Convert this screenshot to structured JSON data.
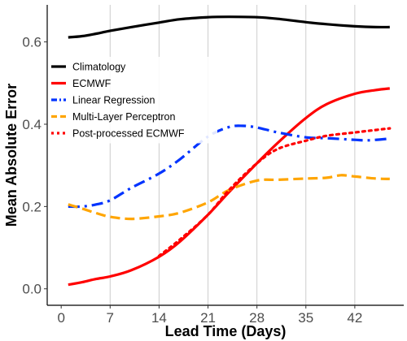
{
  "chart_data": {
    "type": "line",
    "xlabel": "Lead Time (Days)",
    "ylabel": "Mean Absolute Error",
    "x_ticks": [
      "0",
      "7",
      "14",
      "21",
      "28",
      "35",
      "42"
    ],
    "y_ticks": [
      "0.0",
      "0.2",
      "0.4",
      "0.6"
    ],
    "xlim": [
      -2,
      49
    ],
    "ylim": [
      -0.04,
      0.69
    ],
    "vertical_gridlines_at": [
      7,
      14,
      21,
      28,
      35,
      42
    ],
    "legend_position": "top-left",
    "series": [
      {
        "name": "Climatology",
        "color": "#000000",
        "dash": "solid",
        "x": [
          1,
          3,
          5,
          7,
          10,
          14,
          17,
          21,
          24,
          28,
          31,
          35,
          38,
          42,
          45,
          47
        ],
        "y": [
          0.611,
          0.614,
          0.62,
          0.627,
          0.636,
          0.647,
          0.655,
          0.66,
          0.661,
          0.66,
          0.656,
          0.648,
          0.643,
          0.638,
          0.636,
          0.636
        ]
      },
      {
        "name": "ECMWF",
        "color": "#ff0000",
        "dash": "solid",
        "x": [
          1,
          3,
          5,
          7,
          10,
          14,
          17,
          21,
          24,
          28,
          31,
          35,
          38,
          42,
          45,
          47
        ],
        "y": [
          0.01,
          0.016,
          0.024,
          0.03,
          0.045,
          0.078,
          0.115,
          0.18,
          0.235,
          0.305,
          0.355,
          0.415,
          0.449,
          0.474,
          0.483,
          0.487
        ]
      },
      {
        "name": "Linear Regression",
        "color": "#0033ff",
        "dash": "dashdot",
        "x": [
          1,
          3,
          5,
          7,
          10,
          14,
          17,
          21,
          24,
          26,
          28,
          31,
          35,
          38,
          42,
          44,
          47
        ],
        "y": [
          0.2,
          0.2,
          0.205,
          0.215,
          0.245,
          0.28,
          0.315,
          0.37,
          0.393,
          0.396,
          0.392,
          0.38,
          0.368,
          0.366,
          0.362,
          0.361,
          0.365
        ]
      },
      {
        "name": "Multi-Layer Perceptron",
        "color": "#ffa500",
        "dash": "dashed",
        "x": [
          1,
          3,
          5,
          7,
          10,
          14,
          17,
          21,
          24,
          28,
          31,
          35,
          38,
          40,
          42,
          45,
          47
        ],
        "y": [
          0.205,
          0.195,
          0.184,
          0.175,
          0.17,
          0.176,
          0.185,
          0.21,
          0.24,
          0.263,
          0.265,
          0.268,
          0.27,
          0.276,
          0.273,
          0.268,
          0.267
        ]
      },
      {
        "name": "Post-processed ECMWF",
        "color": "#ff0000",
        "dash": "dotted",
        "x": [
          14,
          17,
          21,
          24,
          28,
          31,
          35,
          38,
          42,
          45,
          47
        ],
        "y": [
          0.08,
          0.12,
          0.18,
          0.24,
          0.305,
          0.34,
          0.36,
          0.372,
          0.38,
          0.386,
          0.39
        ]
      }
    ]
  }
}
